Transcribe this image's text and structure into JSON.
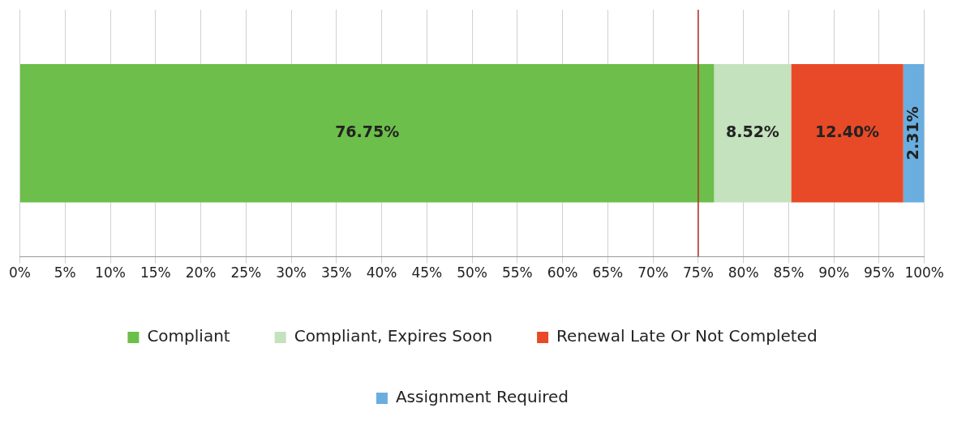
{
  "chart_data": {
    "type": "bar",
    "orientation": "horizontal",
    "stacked": true,
    "categories": [
      null
    ],
    "series": [
      {
        "name": "Compliant",
        "color": "#6cbf4a",
        "values": [
          76.75
        ]
      },
      {
        "name": "Compliant, Expires Soon",
        "color": "#c3e2bd",
        "values": [
          8.52
        ]
      },
      {
        "name": "Renewal Late Or Not Completed",
        "color": "#e84a27",
        "values": [
          12.4
        ]
      },
      {
        "name": "Assignment Required",
        "color": "#6aaee0",
        "values": [
          2.31
        ]
      }
    ],
    "value_labels": [
      [
        "76.75%"
      ],
      [
        "8.52%"
      ],
      [
        "12.40%"
      ],
      [
        "2.31%"
      ]
    ],
    "xlim": [
      0,
      100
    ],
    "xticks": [
      {
        "value": 0,
        "label": "0%"
      },
      {
        "value": 5,
        "label": "5%"
      },
      {
        "value": 10,
        "label": "10%"
      },
      {
        "value": 15,
        "label": "15%"
      },
      {
        "value": 20,
        "label": "20%"
      },
      {
        "value": 25,
        "label": "25%"
      },
      {
        "value": 30,
        "label": "30%"
      },
      {
        "value": 35,
        "label": "35%"
      },
      {
        "value": 40,
        "label": "40%"
      },
      {
        "value": 45,
        "label": "45%"
      },
      {
        "value": 50,
        "label": "50%"
      },
      {
        "value": 55,
        "label": "55%"
      },
      {
        "value": 60,
        "label": "60%"
      },
      {
        "value": 65,
        "label": "65%"
      },
      {
        "value": 70,
        "label": "70%"
      },
      {
        "value": 75,
        "label": "75%"
      },
      {
        "value": 80,
        "label": "80%"
      },
      {
        "value": 85,
        "label": "85%"
      },
      {
        "value": 90,
        "label": "90%"
      },
      {
        "value": 95,
        "label": "95%"
      },
      {
        "value": 100,
        "label": "100%"
      }
    ],
    "ref_lines": [
      {
        "axis": "x",
        "value": 75,
        "color": "#b22a2a"
      }
    ],
    "grid": "x",
    "legend": "bottom"
  }
}
